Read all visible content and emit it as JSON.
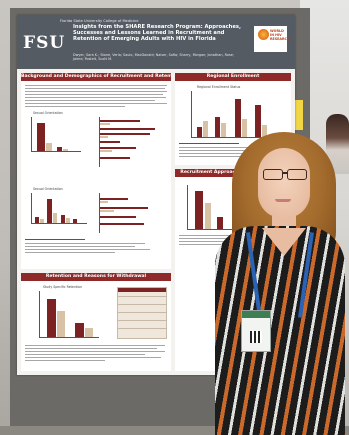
{
  "poster": {
    "logo": "FSU",
    "college": "Florida State University College of Medicine",
    "title": "Insights from the SHARE Research Program: Approaches, Successes and Lessons Learned in Recruitment and Retention of Emerging Adults with HIV in Florida",
    "authors": "Dwyer, Sara K.; Stone, Verla; Saulo, MacDonald; Naiser, Sofia; Sharry, Morgan; Jonathan, Rose; Jaime; Postelt, Scott M.",
    "partner_logo": "WORLD IN HIV RESEARCH",
    "sections": {
      "background": "Background and Demographics of Recruitment and Retention",
      "regional": "Regional Enrollment",
      "approaches": "Recruitment Approaches and Challenges",
      "retention": "Retention and Reasons for Withdrawal"
    },
    "chart_labels": {
      "left_top": "Sexual Orientation",
      "left_mid": "Sexual Orientation",
      "regional": "Regional Enrollment Status",
      "retention": "Study Specific Retention"
    }
  },
  "colors": {
    "poster_header": "#545b63",
    "section_header": "#8e2b2a",
    "bar_primary": "#7d2222",
    "bar_secondary": "#d8c2a6"
  }
}
